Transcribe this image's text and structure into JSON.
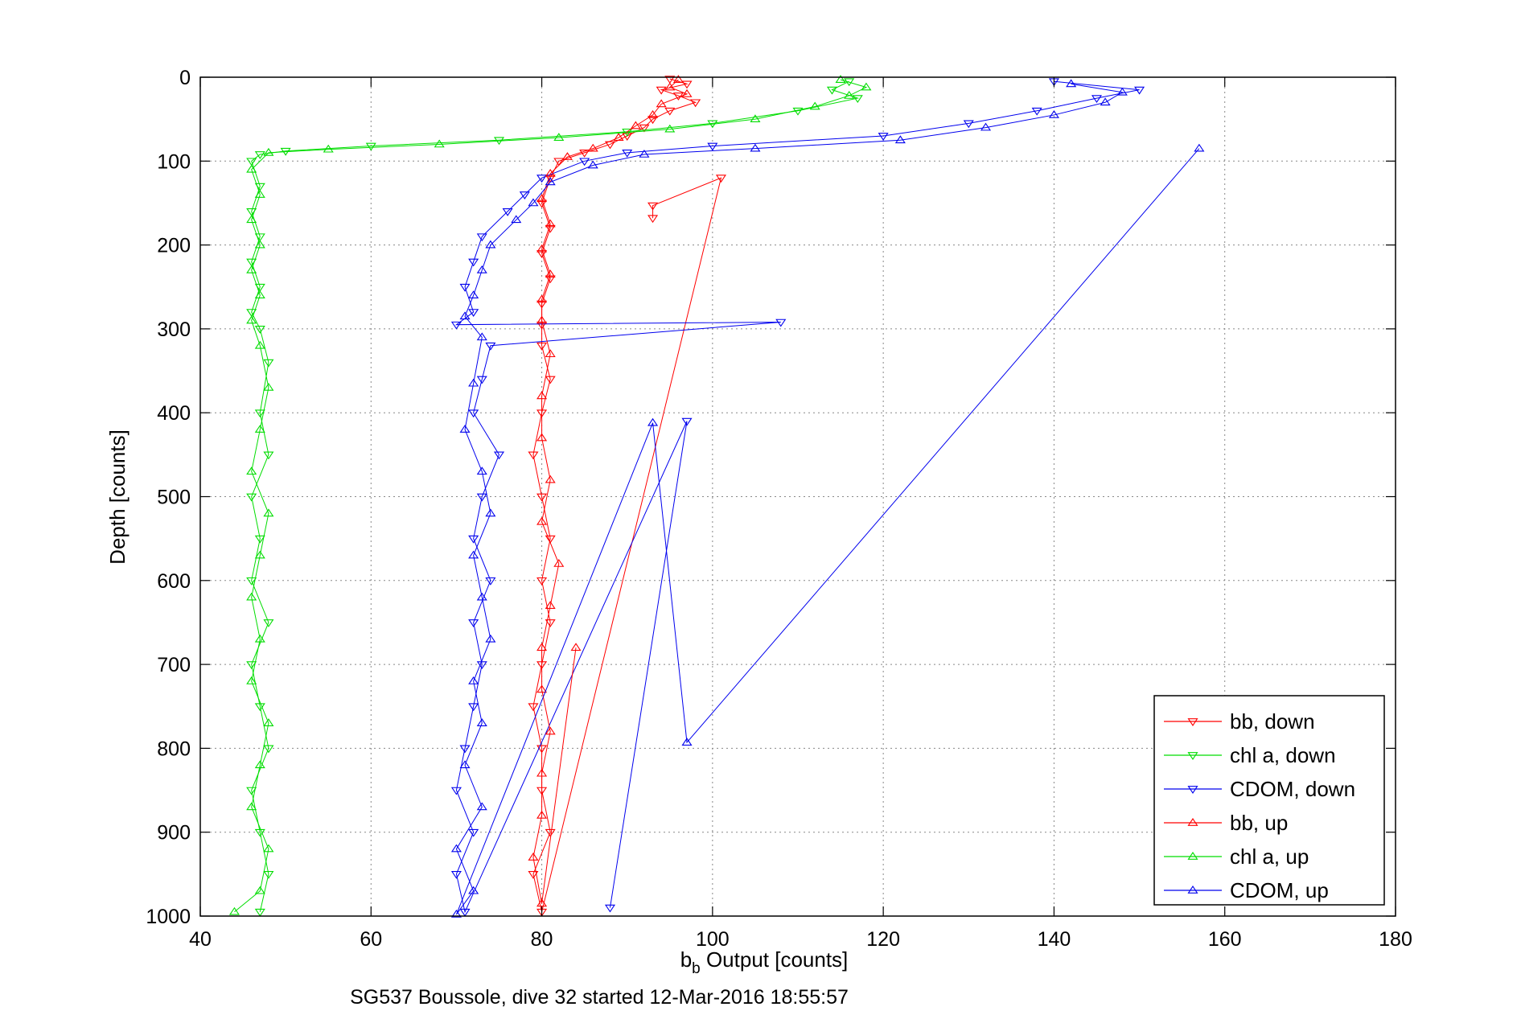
{
  "chart_data": {
    "type": "scatter",
    "xlabel_main": "b",
    "xlabel_sub": "b",
    "xlabel_rest": " Output [counts]",
    "ylabel": "Depth [counts]",
    "caption": "SG537 Boussole, dive 32 started 12-Mar-2016 18:55:57",
    "xlim": [
      40,
      180
    ],
    "ylim": [
      1000,
      0
    ],
    "y_reversed": true,
    "grid": true,
    "legend_position": "bottom-right",
    "x_ticks": [
      "40",
      "60",
      "80",
      "100",
      "120",
      "140",
      "160",
      "180"
    ],
    "y_ticks": [
      "0",
      "100",
      "200",
      "300",
      "400",
      "500",
      "600",
      "700",
      "800",
      "900",
      "1000"
    ],
    "series": [
      {
        "name": "bb, down",
        "color": "#ff0000",
        "marker": "triangle-down",
        "points": [
          [
            95,
            2
          ],
          [
            97,
            8
          ],
          [
            94,
            15
          ],
          [
            96,
            22
          ],
          [
            98,
            30
          ],
          [
            95,
            40
          ],
          [
            93,
            50
          ],
          [
            92,
            60
          ],
          [
            90,
            70
          ],
          [
            88,
            80
          ],
          [
            85,
            90
          ],
          [
            82,
            100
          ],
          [
            81,
            120
          ],
          [
            80,
            150
          ],
          [
            81,
            180
          ],
          [
            80,
            210
          ],
          [
            81,
            240
          ],
          [
            80,
            270
          ],
          [
            80,
            295
          ],
          [
            80,
            320
          ],
          [
            81,
            360
          ],
          [
            80,
            400
          ],
          [
            79,
            450
          ],
          [
            80,
            500
          ],
          [
            81,
            550
          ],
          [
            80,
            600
          ],
          [
            81,
            650
          ],
          [
            80,
            700
          ],
          [
            79,
            750
          ],
          [
            80,
            800
          ],
          [
            80,
            850
          ],
          [
            81,
            900
          ],
          [
            79,
            950
          ],
          [
            80,
            995
          ],
          [
            101,
            120
          ],
          [
            93,
            153
          ],
          [
            93,
            168
          ]
        ]
      },
      {
        "name": "chl a, down",
        "color": "#00dd00",
        "marker": "triangle-down",
        "points": [
          [
            116,
            5
          ],
          [
            114,
            15
          ],
          [
            117,
            25
          ],
          [
            110,
            40
          ],
          [
            100,
            55
          ],
          [
            90,
            65
          ],
          [
            75,
            75
          ],
          [
            60,
            82
          ],
          [
            50,
            88
          ],
          [
            47,
            92
          ],
          [
            46,
            100
          ],
          [
            47,
            130
          ],
          [
            46,
            160
          ],
          [
            47,
            190
          ],
          [
            46,
            220
          ],
          [
            47,
            250
          ],
          [
            46,
            280
          ],
          [
            47,
            300
          ],
          [
            48,
            340
          ],
          [
            47,
            400
          ],
          [
            48,
            450
          ],
          [
            46,
            500
          ],
          [
            47,
            550
          ],
          [
            46,
            600
          ],
          [
            48,
            650
          ],
          [
            46,
            700
          ],
          [
            47,
            750
          ],
          [
            48,
            800
          ],
          [
            46,
            850
          ],
          [
            47,
            900
          ],
          [
            48,
            950
          ],
          [
            47,
            995
          ]
        ]
      },
      {
        "name": "CDOM, down",
        "color": "#0000ee",
        "marker": "triangle-down",
        "points": [
          [
            140,
            5
          ],
          [
            150,
            15
          ],
          [
            145,
            25
          ],
          [
            138,
            40
          ],
          [
            130,
            55
          ],
          [
            120,
            70
          ],
          [
            100,
            82
          ],
          [
            90,
            90
          ],
          [
            85,
            100
          ],
          [
            80,
            120
          ],
          [
            78,
            140
          ],
          [
            76,
            160
          ],
          [
            73,
            190
          ],
          [
            72,
            220
          ],
          [
            71,
            250
          ],
          [
            72,
            280
          ],
          [
            70,
            295
          ],
          [
            108,
            292
          ],
          [
            74,
            320
          ],
          [
            73,
            360
          ],
          [
            72,
            400
          ],
          [
            75,
            450
          ],
          [
            73,
            500
          ],
          [
            72,
            550
          ],
          [
            74,
            600
          ],
          [
            72,
            650
          ],
          [
            73,
            700
          ],
          [
            72,
            750
          ],
          [
            71,
            800
          ],
          [
            70,
            850
          ],
          [
            72,
            900
          ],
          [
            70,
            950
          ],
          [
            71,
            995
          ],
          [
            97,
            410
          ],
          [
            88,
            990
          ]
        ]
      },
      {
        "name": "bb, up",
        "color": "#ff0000",
        "marker": "triangle-up",
        "points": [
          [
            96,
            3
          ],
          [
            95,
            12
          ],
          [
            97,
            20
          ],
          [
            94,
            32
          ],
          [
            93,
            45
          ],
          [
            91,
            58
          ],
          [
            89,
            72
          ],
          [
            86,
            85
          ],
          [
            83,
            95
          ],
          [
            81,
            115
          ],
          [
            80,
            145
          ],
          [
            81,
            175
          ],
          [
            80,
            205
          ],
          [
            81,
            235
          ],
          [
            80,
            265
          ],
          [
            80,
            290
          ],
          [
            81,
            330
          ],
          [
            80,
            380
          ],
          [
            80,
            430
          ],
          [
            81,
            480
          ],
          [
            80,
            530
          ],
          [
            82,
            580
          ],
          [
            81,
            630
          ],
          [
            80,
            680
          ],
          [
            80,
            730
          ],
          [
            81,
            780
          ],
          [
            80,
            830
          ],
          [
            80,
            880
          ],
          [
            79,
            930
          ],
          [
            80,
            985
          ],
          [
            84,
            680
          ]
        ]
      },
      {
        "name": "chl a, up",
        "color": "#00dd00",
        "marker": "triangle-up",
        "points": [
          [
            115,
            3
          ],
          [
            118,
            12
          ],
          [
            116,
            22
          ],
          [
            112,
            35
          ],
          [
            105,
            50
          ],
          [
            95,
            62
          ],
          [
            82,
            72
          ],
          [
            68,
            80
          ],
          [
            55,
            86
          ],
          [
            48,
            90
          ],
          [
            46,
            110
          ],
          [
            47,
            140
          ],
          [
            46,
            170
          ],
          [
            47,
            200
          ],
          [
            46,
            230
          ],
          [
            47,
            260
          ],
          [
            46,
            290
          ],
          [
            47,
            320
          ],
          [
            48,
            370
          ],
          [
            47,
            420
          ],
          [
            46,
            470
          ],
          [
            48,
            520
          ],
          [
            47,
            570
          ],
          [
            46,
            620
          ],
          [
            47,
            670
          ],
          [
            46,
            720
          ],
          [
            48,
            770
          ],
          [
            47,
            820
          ],
          [
            46,
            870
          ],
          [
            48,
            920
          ],
          [
            47,
            970
          ],
          [
            44,
            995
          ]
        ]
      },
      {
        "name": "CDOM, up",
        "color": "#0000ee",
        "marker": "triangle-up",
        "points": [
          [
            142,
            8
          ],
          [
            148,
            18
          ],
          [
            146,
            30
          ],
          [
            140,
            45
          ],
          [
            132,
            60
          ],
          [
            122,
            75
          ],
          [
            105,
            85
          ],
          [
            92,
            92
          ],
          [
            86,
            105
          ],
          [
            81,
            125
          ],
          [
            79,
            150
          ],
          [
            77,
            170
          ],
          [
            74,
            200
          ],
          [
            73,
            230
          ],
          [
            72,
            260
          ],
          [
            71,
            285
          ],
          [
            73,
            310
          ],
          [
            72,
            365
          ],
          [
            71,
            420
          ],
          [
            73,
            470
          ],
          [
            74,
            520
          ],
          [
            72,
            570
          ],
          [
            73,
            620
          ],
          [
            74,
            670
          ],
          [
            72,
            720
          ],
          [
            73,
            770
          ],
          [
            71,
            820
          ],
          [
            73,
            870
          ],
          [
            70,
            920
          ],
          [
            72,
            970
          ],
          [
            70,
            998
          ],
          [
            93,
            412
          ],
          [
            97,
            793
          ],
          [
            157,
            85
          ]
        ]
      }
    ]
  }
}
